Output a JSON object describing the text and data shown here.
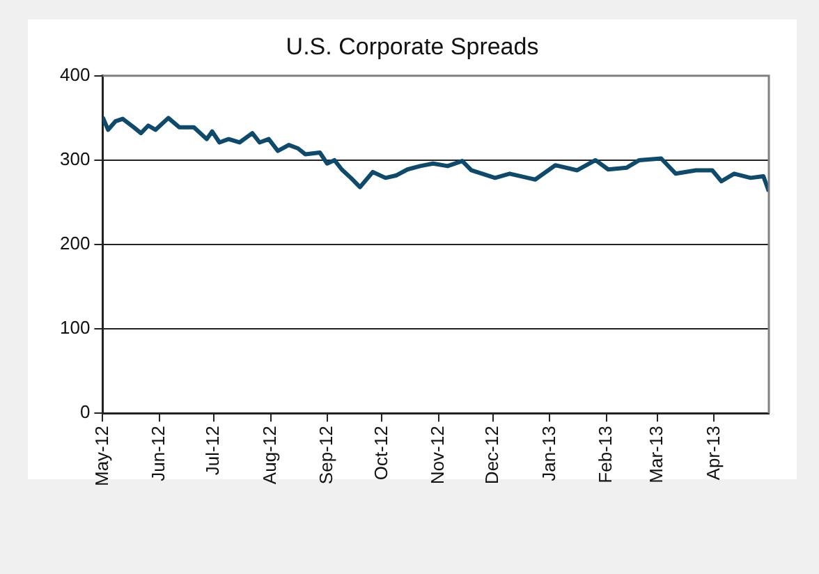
{
  "chart_data": {
    "type": "line",
    "title": "U.S. Corporate Spreads",
    "x": [
      "2012-05-01",
      "2012-05-04",
      "2012-05-08",
      "2012-05-12",
      "2012-05-18",
      "2012-05-22",
      "2012-05-26",
      "2012-05-30",
      "2012-06-06",
      "2012-06-12",
      "2012-06-20",
      "2012-06-27",
      "2012-06-30",
      "2012-07-04",
      "2012-07-09",
      "2012-07-15",
      "2012-07-22",
      "2012-07-26",
      "2012-07-31",
      "2012-08-05",
      "2012-08-11",
      "2012-08-16",
      "2012-08-20",
      "2012-08-28",
      "2012-09-01",
      "2012-09-05",
      "2012-09-09",
      "2012-09-14",
      "2012-09-19",
      "2012-09-26",
      "2012-10-03",
      "2012-10-09",
      "2012-10-15",
      "2012-10-22",
      "2012-10-29",
      "2012-11-06",
      "2012-11-14",
      "2012-11-19",
      "2012-12-02",
      "2012-12-10",
      "2012-12-24",
      "2013-01-04",
      "2013-01-16",
      "2013-01-26",
      "2013-02-02",
      "2013-02-12",
      "2013-02-19",
      "2013-03-03",
      "2013-03-11",
      "2013-03-22",
      "2013-03-31",
      "2013-04-05",
      "2013-04-12",
      "2013-04-21",
      "2013-04-28",
      "2013-05-01"
    ],
    "series": [
      {
        "color": "#0e4a6b",
        "values": [
          351,
          336,
          346,
          349,
          339,
          332,
          341,
          336,
          350,
          339,
          339,
          325,
          334,
          321,
          325,
          321,
          332,
          321,
          325,
          311,
          318,
          314,
          307,
          309,
          296,
          300,
          289,
          279,
          268,
          286,
          279,
          282,
          289,
          293,
          296,
          293,
          299,
          288,
          279,
          284,
          277,
          294,
          288,
          300,
          289,
          291,
          300,
          302,
          284,
          288,
          288,
          275,
          284,
          279,
          281,
          263
        ]
      }
    ],
    "xlim": [
      "2012-05-01",
      "2013-05-01"
    ],
    "xticks": [
      {
        "value": "2012-05-01",
        "label": "May-12"
      },
      {
        "value": "2012-06-01",
        "label": "Jun-12"
      },
      {
        "value": "2012-07-01",
        "label": "Jul-12"
      },
      {
        "value": "2012-08-01",
        "label": "Aug-12"
      },
      {
        "value": "2012-09-01",
        "label": "Sep-12"
      },
      {
        "value": "2012-10-01",
        "label": "Oct-12"
      },
      {
        "value": "2012-11-01",
        "label": "Nov-12"
      },
      {
        "value": "2012-12-01",
        "label": "Dec-12"
      },
      {
        "value": "2013-01-01",
        "label": "Jan-13"
      },
      {
        "value": "2013-02-01",
        "label": "Feb-13"
      },
      {
        "value": "2013-03-01",
        "label": "Mar-13"
      },
      {
        "value": "2013-04-01",
        "label": "Apr-13"
      }
    ],
    "ylim": [
      0,
      400
    ],
    "yticks": [
      0,
      100,
      200,
      300,
      400
    ],
    "grid": "y",
    "legend": false,
    "marker": "none",
    "line_style": "solid"
  }
}
